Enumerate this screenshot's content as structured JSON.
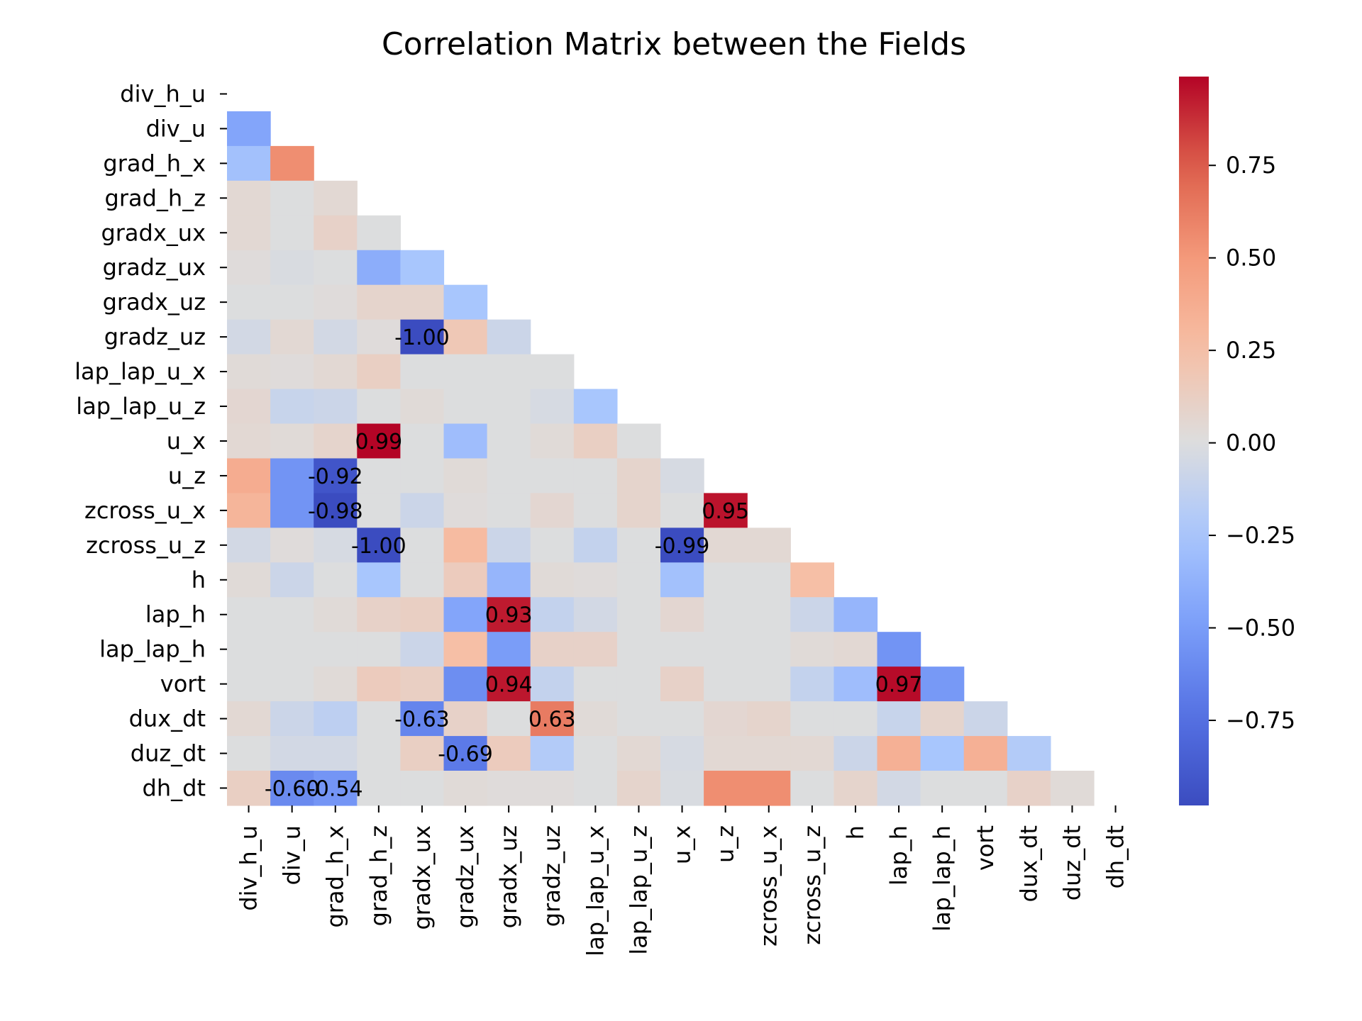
{
  "chart_data": {
    "type": "heatmap",
    "title": "Correlation Matrix between the Fields",
    "xlabel": "",
    "ylabel": "",
    "labels": [
      "div_h_u",
      "div_u",
      "grad_h_x",
      "grad_h_z",
      "gradx_ux",
      "gradz_ux",
      "gradx_uz",
      "gradz_uz",
      "lap_lap_u_x",
      "lap_lap_u_z",
      "u_x",
      "u_z",
      "zcross_u_x",
      "zcross_u_z",
      "h",
      "lap_h",
      "lap_lap_h",
      "vort",
      "dux_dt",
      "duz_dt",
      "dh_dt"
    ],
    "mask": "upper triangle including diagonal",
    "matrix": [
      [],
      [
        -0.45
      ],
      [
        -0.28,
        0.55
      ],
      [
        0.05,
        0.0,
        0.05
      ],
      [
        0.05,
        0.0,
        0.1,
        0.0
      ],
      [
        0.02,
        -0.02,
        0.0,
        -0.4,
        -0.25
      ],
      [
        0.0,
        0.0,
        0.02,
        0.08,
        0.08,
        -0.25
      ],
      [
        -0.05,
        0.05,
        -0.05,
        0.02,
        -1.0,
        0.18,
        -0.08
      ],
      [
        0.03,
        0.02,
        0.05,
        0.12,
        0.0,
        0.0,
        0.0,
        0.0
      ],
      [
        0.06,
        -0.1,
        -0.08,
        0.0,
        0.03,
        0.0,
        0.0,
        -0.03,
        -0.25
      ],
      [
        0.05,
        0.03,
        0.08,
        0.99,
        0.0,
        -0.3,
        0.0,
        0.03,
        0.12,
        0.0
      ],
      [
        0.38,
        -0.55,
        -0.92,
        0.0,
        0.0,
        0.03,
        0.0,
        0.0,
        0.0,
        0.08,
        -0.03
      ],
      [
        0.32,
        -0.55,
        -0.98,
        0.0,
        -0.08,
        0.02,
        0.0,
        0.06,
        0.0,
        0.08,
        0.0,
        0.95
      ],
      [
        -0.05,
        0.02,
        -0.03,
        -1.0,
        0.0,
        0.28,
        -0.08,
        0.0,
        -0.12,
        0.0,
        -0.99,
        0.05,
        0.05
      ],
      [
        0.03,
        -0.08,
        0.0,
        -0.25,
        0.0,
        0.15,
        -0.35,
        0.03,
        0.02,
        0.0,
        -0.28,
        0.0,
        0.0,
        0.25
      ],
      [
        0.0,
        0.0,
        0.03,
        0.1,
        0.12,
        -0.45,
        0.93,
        -0.12,
        -0.05,
        0.0,
        0.06,
        0.0,
        0.0,
        -0.08,
        -0.35
      ],
      [
        0.0,
        0.0,
        0.0,
        0.0,
        -0.08,
        0.25,
        -0.5,
        0.1,
        0.1,
        0.0,
        0.0,
        0.0,
        0.0,
        0.03,
        0.05,
        -0.55
      ],
      [
        0.0,
        0.0,
        0.03,
        0.15,
        0.12,
        -0.58,
        0.94,
        -0.12,
        0.0,
        0.0,
        0.1,
        0.0,
        0.0,
        -0.12,
        -0.3,
        0.97,
        -0.52
      ],
      [
        0.05,
        -0.08,
        -0.15,
        0.0,
        -0.63,
        0.1,
        0.0,
        0.63,
        0.03,
        0.0,
        0.0,
        0.06,
        0.08,
        0.0,
        0.0,
        -0.1,
        0.08,
        -0.08
      ],
      [
        0.0,
        -0.05,
        -0.05,
        0.0,
        0.12,
        -0.69,
        0.15,
        -0.2,
        0.0,
        0.05,
        -0.03,
        0.05,
        0.05,
        0.05,
        -0.08,
        0.35,
        -0.25,
        0.35,
        -0.2
      ],
      [
        0.12,
        -0.6,
        -0.54,
        0.0,
        0.0,
        0.03,
        0.02,
        0.02,
        0.0,
        0.08,
        -0.02,
        0.55,
        0.55,
        0.0,
        0.08,
        -0.05,
        0.0,
        0.0,
        0.1,
        0.03
      ]
    ],
    "annotations": [
      {
        "row": 7,
        "col": 4,
        "text": "-1.00"
      },
      {
        "row": 10,
        "col": 3,
        "text": "0.99"
      },
      {
        "row": 11,
        "col": 2,
        "text": "-0.92"
      },
      {
        "row": 12,
        "col": 2,
        "text": "-0.98"
      },
      {
        "row": 12,
        "col": 11,
        "text": "0.95"
      },
      {
        "row": 13,
        "col": 3,
        "text": "-1.00"
      },
      {
        "row": 13,
        "col": 10,
        "text": "-0.99"
      },
      {
        "row": 15,
        "col": 6,
        "text": "0.93"
      },
      {
        "row": 17,
        "col": 6,
        "text": "0.94"
      },
      {
        "row": 17,
        "col": 15,
        "text": "0.97"
      },
      {
        "row": 18,
        "col": 4,
        "text": "-0.63"
      },
      {
        "row": 18,
        "col": 7,
        "text": "0.63"
      },
      {
        "row": 19,
        "col": 5,
        "text": "-0.69"
      },
      {
        "row": 20,
        "col": 1,
        "text": "-0.60"
      },
      {
        "row": 20,
        "col": 2,
        "text": "-0.54"
      }
    ],
    "colormap": "coolwarm",
    "vmin": -0.98,
    "vmax": 0.99,
    "colorbar_ticks": [
      {
        "value": 0.75,
        "label": "0.75"
      },
      {
        "value": 0.5,
        "label": "0.50"
      },
      {
        "value": 0.25,
        "label": "0.25"
      },
      {
        "value": 0.0,
        "label": "0.00"
      },
      {
        "value": -0.25,
        "label": "−0.25"
      },
      {
        "value": -0.5,
        "label": "−0.50"
      },
      {
        "value": -0.75,
        "label": "−0.75"
      }
    ]
  }
}
